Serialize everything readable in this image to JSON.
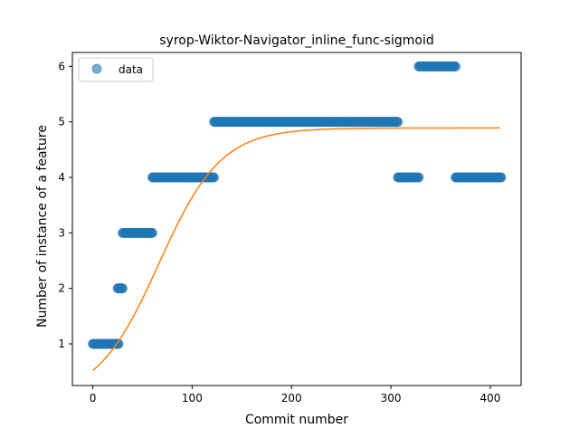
{
  "chart_data": {
    "type": "scatter",
    "title": "syrop-Wiktor-Navigator_inline_func-sigmoid",
    "xlabel": "Commit number",
    "ylabel": "Number of instance of a feature",
    "xlim": [
      -20.5,
      431
    ],
    "ylim": [
      0.25,
      6.25
    ],
    "xticks": [
      0,
      100,
      200,
      300,
      400
    ],
    "yticks": [
      1,
      2,
      3,
      4,
      5,
      6
    ],
    "legend": {
      "position": "top-left",
      "entries": [
        "data"
      ]
    },
    "colors": {
      "data": "#1f77b4",
      "fit": "#ff7f0e"
    },
    "series": [
      {
        "name": "data",
        "kind": "scatter",
        "segments": [
          {
            "x_start": 0,
            "x_end": 26,
            "y": 1
          },
          {
            "x_start": 25,
            "x_end": 30,
            "y": 2
          },
          {
            "x_start": 30,
            "x_end": 60,
            "y": 3
          },
          {
            "x_start": 60,
            "x_end": 122,
            "y": 4
          },
          {
            "x_start": 122,
            "x_end": 307,
            "y": 5
          },
          {
            "x_start": 307,
            "x_end": 328,
            "y": 4
          },
          {
            "x_start": 328,
            "x_end": 365,
            "y": 6
          },
          {
            "x_start": 365,
            "x_end": 411,
            "y": 4
          }
        ]
      },
      {
        "kind": "line",
        "function": "sigmoid",
        "x_range": [
          0,
          410
        ],
        "y_start": 0.52,
        "y_asymptote": 4.89
      }
    ]
  }
}
